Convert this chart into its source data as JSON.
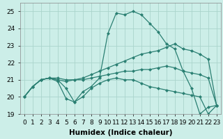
{
  "x": [
    0,
    1,
    2,
    3,
    4,
    5,
    6,
    7,
    8,
    9,
    10,
    11,
    12,
    13,
    14,
    15,
    16,
    17,
    18,
    19,
    20,
    21,
    22,
    23
  ],
  "series": [
    [
      20.0,
      20.6,
      21.0,
      21.1,
      20.9,
      19.9,
      19.7,
      20.3,
      20.6,
      21.1,
      23.7,
      24.9,
      24.8,
      25.0,
      24.8,
      24.3,
      23.8,
      23.1,
      22.8,
      21.5,
      20.5,
      19.0,
      19.4,
      19.5
    ],
    [
      20.0,
      20.6,
      21.0,
      21.1,
      21.1,
      21.0,
      21.0,
      21.1,
      21.3,
      21.5,
      21.7,
      21.9,
      22.1,
      22.3,
      22.5,
      22.6,
      22.7,
      22.9,
      23.1,
      22.8,
      22.7,
      22.5,
      22.2,
      19.5
    ],
    [
      20.0,
      20.6,
      21.0,
      21.1,
      21.0,
      20.9,
      21.0,
      21.0,
      21.1,
      21.2,
      21.3,
      21.4,
      21.5,
      21.5,
      21.6,
      21.6,
      21.7,
      21.8,
      21.7,
      21.5,
      21.4,
      21.3,
      21.1,
      19.5
    ],
    [
      20.0,
      20.6,
      21.0,
      21.1,
      21.0,
      20.5,
      19.7,
      20.0,
      20.5,
      20.8,
      21.0,
      21.1,
      21.0,
      21.0,
      20.8,
      20.6,
      20.5,
      20.4,
      20.3,
      20.2,
      20.1,
      20.0,
      19.0,
      19.5
    ]
  ],
  "line_color": "#2a7f72",
  "marker": "D",
  "markersize": 2.5,
  "linewidth": 0.9,
  "bg_color": "#cceee8",
  "grid_color": "#aad4cc",
  "xlabel": "Humidex (Indice chaleur)",
  "ylim": [
    19,
    25.5
  ],
  "xlim": [
    -0.5,
    23.5
  ],
  "yticks": [
    19,
    20,
    21,
    22,
    23,
    24,
    25
  ],
  "xticks": [
    0,
    1,
    2,
    3,
    4,
    5,
    6,
    7,
    8,
    9,
    10,
    11,
    12,
    13,
    14,
    15,
    16,
    17,
    18,
    19,
    20,
    21,
    22,
    23
  ],
  "tick_fontsize": 6.5,
  "xlabel_fontsize": 7.5
}
